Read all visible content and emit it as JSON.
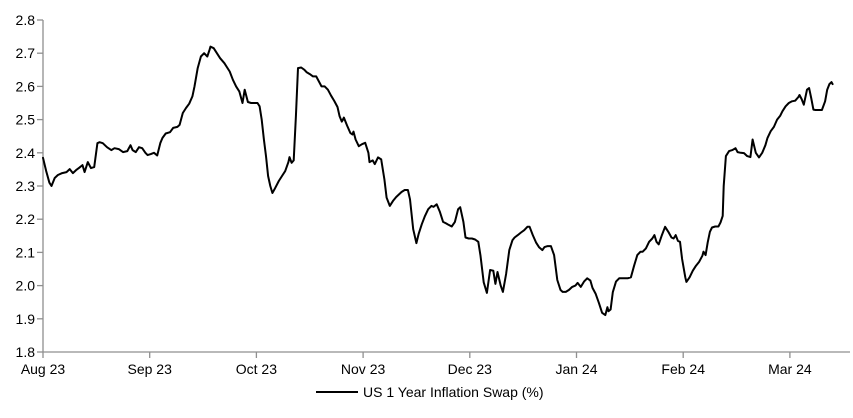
{
  "chart_data": {
    "type": "line",
    "series": [
      {
        "name": "US 1 Year Inflation Swap (%)",
        "color": "#000000",
        "points": [
          [
            0,
            2.385
          ],
          [
            0.03,
            2.345
          ],
          [
            0.06,
            2.31
          ],
          [
            0.08,
            2.3
          ],
          [
            0.11,
            2.324
          ],
          [
            0.14,
            2.333
          ],
          [
            0.18,
            2.339
          ],
          [
            0.22,
            2.342
          ],
          [
            0.25,
            2.351
          ],
          [
            0.28,
            2.339
          ],
          [
            0.31,
            2.348
          ],
          [
            0.34,
            2.355
          ],
          [
            0.37,
            2.363
          ],
          [
            0.39,
            2.342
          ],
          [
            0.42,
            2.372
          ],
          [
            0.45,
            2.354
          ],
          [
            0.48,
            2.357
          ],
          [
            0.51,
            2.429
          ],
          [
            0.53,
            2.432
          ],
          [
            0.56,
            2.429
          ],
          [
            0.6,
            2.417
          ],
          [
            0.64,
            2.408
          ],
          [
            0.67,
            2.414
          ],
          [
            0.71,
            2.411
          ],
          [
            0.75,
            2.402
          ],
          [
            0.79,
            2.405
          ],
          [
            0.82,
            2.423
          ],
          [
            0.84,
            2.408
          ],
          [
            0.87,
            2.402
          ],
          [
            0.9,
            2.417
          ],
          [
            0.93,
            2.414
          ],
          [
            0.96,
            2.4
          ],
          [
            0.98,
            2.393
          ],
          [
            1.01,
            2.396
          ],
          [
            1.04,
            2.4
          ],
          [
            1.07,
            2.392
          ],
          [
            1.1,
            2.43
          ],
          [
            1.12,
            2.445
          ],
          [
            1.15,
            2.458
          ],
          [
            1.19,
            2.462
          ],
          [
            1.22,
            2.475
          ],
          [
            1.26,
            2.478
          ],
          [
            1.28,
            2.484
          ],
          [
            1.31,
            2.52
          ],
          [
            1.34,
            2.535
          ],
          [
            1.37,
            2.548
          ],
          [
            1.4,
            2.57
          ],
          [
            1.42,
            2.6
          ],
          [
            1.45,
            2.655
          ],
          [
            1.48,
            2.69
          ],
          [
            1.51,
            2.7
          ],
          [
            1.54,
            2.69
          ],
          [
            1.56,
            2.71
          ],
          [
            1.57,
            2.72
          ],
          [
            1.6,
            2.715
          ],
          [
            1.63,
            2.7
          ],
          [
            1.66,
            2.685
          ],
          [
            1.7,
            2.67
          ],
          [
            1.72,
            2.66
          ],
          [
            1.75,
            2.645
          ],
          [
            1.78,
            2.62
          ],
          [
            1.81,
            2.6
          ],
          [
            1.84,
            2.585
          ],
          [
            1.87,
            2.55
          ],
          [
            1.89,
            2.59
          ],
          [
            1.92,
            2.553
          ],
          [
            1.95,
            2.55
          ],
          [
            1.98,
            2.55
          ],
          [
            2.01,
            2.55
          ],
          [
            2.03,
            2.54
          ],
          [
            2.05,
            2.5
          ],
          [
            2.07,
            2.44
          ],
          [
            2.09,
            2.39
          ],
          [
            2.11,
            2.33
          ],
          [
            2.13,
            2.3
          ],
          [
            2.15,
            2.279
          ],
          [
            2.17,
            2.29
          ],
          [
            2.21,
            2.315
          ],
          [
            2.24,
            2.33
          ],
          [
            2.27,
            2.345
          ],
          [
            2.3,
            2.372
          ],
          [
            2.31,
            2.387
          ],
          [
            2.33,
            2.37
          ],
          [
            2.35,
            2.377
          ],
          [
            2.37,
            2.51
          ],
          [
            2.39,
            2.655
          ],
          [
            2.42,
            2.657
          ],
          [
            2.45,
            2.65
          ],
          [
            2.47,
            2.643
          ],
          [
            2.5,
            2.637
          ],
          [
            2.53,
            2.63
          ],
          [
            2.56,
            2.63
          ],
          [
            2.59,
            2.612
          ],
          [
            2.61,
            2.6
          ],
          [
            2.64,
            2.6
          ],
          [
            2.67,
            2.59
          ],
          [
            2.7,
            2.572
          ],
          [
            2.73,
            2.556
          ],
          [
            2.76,
            2.538
          ],
          [
            2.78,
            2.51
          ],
          [
            2.8,
            2.494
          ],
          [
            2.82,
            2.506
          ],
          [
            2.85,
            2.482
          ],
          [
            2.88,
            2.46
          ],
          [
            2.9,
            2.455
          ],
          [
            2.91,
            2.464
          ],
          [
            2.93,
            2.44
          ],
          [
            2.96,
            2.42
          ],
          [
            2.99,
            2.426
          ],
          [
            3.02,
            2.43
          ],
          [
            3.05,
            2.4
          ],
          [
            3.06,
            2.372
          ],
          [
            3.09,
            2.377
          ],
          [
            3.11,
            2.366
          ],
          [
            3.14,
            2.386
          ],
          [
            3.17,
            2.38
          ],
          [
            3.2,
            2.32
          ],
          [
            3.22,
            2.265
          ],
          [
            3.25,
            2.24
          ],
          [
            3.28,
            2.255
          ],
          [
            3.31,
            2.267
          ],
          [
            3.34,
            2.276
          ],
          [
            3.36,
            2.282
          ],
          [
            3.39,
            2.288
          ],
          [
            3.42,
            2.288
          ],
          [
            3.44,
            2.26
          ],
          [
            3.47,
            2.17
          ],
          [
            3.5,
            2.128
          ],
          [
            3.52,
            2.155
          ],
          [
            3.55,
            2.185
          ],
          [
            3.58,
            2.21
          ],
          [
            3.61,
            2.23
          ],
          [
            3.64,
            2.24
          ],
          [
            3.66,
            2.237
          ],
          [
            3.69,
            2.245
          ],
          [
            3.72,
            2.222
          ],
          [
            3.75,
            2.192
          ],
          [
            3.78,
            2.187
          ],
          [
            3.8,
            2.183
          ],
          [
            3.83,
            2.178
          ],
          [
            3.86,
            2.192
          ],
          [
            3.89,
            2.23
          ],
          [
            3.91,
            2.236
          ],
          [
            3.94,
            2.192
          ],
          [
            3.96,
            2.145
          ],
          [
            3.99,
            2.142
          ],
          [
            4.02,
            2.142
          ],
          [
            4.05,
            2.139
          ],
          [
            4.08,
            2.132
          ],
          [
            4.1,
            2.09
          ],
          [
            4.13,
            2.01
          ],
          [
            4.16,
            1.978
          ],
          [
            4.19,
            2.047
          ],
          [
            4.22,
            2.045
          ],
          [
            4.24,
            2.005
          ],
          [
            4.26,
            2.041
          ],
          [
            4.29,
            2.0
          ],
          [
            4.31,
            1.981
          ],
          [
            4.34,
            2.035
          ],
          [
            4.37,
            2.107
          ],
          [
            4.4,
            2.137
          ],
          [
            4.42,
            2.145
          ],
          [
            4.45,
            2.152
          ],
          [
            4.48,
            2.16
          ],
          [
            4.51,
            2.167
          ],
          [
            4.54,
            2.177
          ],
          [
            4.56,
            2.177
          ],
          [
            4.59,
            2.152
          ],
          [
            4.62,
            2.13
          ],
          [
            4.65,
            2.115
          ],
          [
            4.68,
            2.107
          ],
          [
            4.7,
            2.116
          ],
          [
            4.73,
            2.119
          ],
          [
            4.76,
            2.119
          ],
          [
            4.79,
            2.092
          ],
          [
            4.82,
            2.017
          ],
          [
            4.85,
            1.987
          ],
          [
            4.87,
            1.981
          ],
          [
            4.9,
            1.981
          ],
          [
            4.93,
            1.987
          ],
          [
            4.96,
            1.996
          ],
          [
            4.99,
            2.0
          ],
          [
            5.01,
            2.008
          ],
          [
            5.04,
            1.996
          ],
          [
            5.07,
            2.012
          ],
          [
            5.1,
            2.022
          ],
          [
            5.13,
            2.015
          ],
          [
            5.15,
            1.993
          ],
          [
            5.18,
            1.975
          ],
          [
            5.21,
            1.948
          ],
          [
            5.24,
            1.918
          ],
          [
            5.27,
            1.911
          ],
          [
            5.29,
            1.935
          ],
          [
            5.3,
            1.923
          ],
          [
            5.32,
            1.928
          ],
          [
            5.34,
            1.98
          ],
          [
            5.37,
            2.012
          ],
          [
            5.4,
            2.022
          ],
          [
            5.43,
            2.022
          ],
          [
            5.45,
            2.022
          ],
          [
            5.48,
            2.022
          ],
          [
            5.51,
            2.025
          ],
          [
            5.54,
            2.06
          ],
          [
            5.57,
            2.092
          ],
          [
            5.6,
            2.102
          ],
          [
            5.62,
            2.102
          ],
          [
            5.65,
            2.112
          ],
          [
            5.68,
            2.132
          ],
          [
            5.71,
            2.142
          ],
          [
            5.73,
            2.152
          ],
          [
            5.75,
            2.132
          ],
          [
            5.77,
            2.124
          ],
          [
            5.8,
            2.152
          ],
          [
            5.83,
            2.177
          ],
          [
            5.86,
            2.162
          ],
          [
            5.89,
            2.145
          ],
          [
            5.91,
            2.142
          ],
          [
            5.93,
            2.152
          ],
          [
            5.95,
            2.135
          ],
          [
            5.97,
            2.132
          ],
          [
            5.99,
            2.08
          ],
          [
            6.02,
            2.025
          ],
          [
            6.03,
            2.011
          ],
          [
            6.06,
            2.025
          ],
          [
            6.09,
            2.045
          ],
          [
            6.12,
            2.06
          ],
          [
            6.15,
            2.072
          ],
          [
            6.18,
            2.09
          ],
          [
            6.19,
            2.102
          ],
          [
            6.21,
            2.092
          ],
          [
            6.23,
            2.13
          ],
          [
            6.25,
            2.162
          ],
          [
            6.27,
            2.175
          ],
          [
            6.3,
            2.178
          ],
          [
            6.33,
            2.178
          ],
          [
            6.35,
            2.19
          ],
          [
            6.37,
            2.21
          ],
          [
            6.38,
            2.3
          ],
          [
            6.4,
            2.39
          ],
          [
            6.43,
            2.405
          ],
          [
            6.46,
            2.408
          ],
          [
            6.49,
            2.414
          ],
          [
            6.51,
            2.402
          ],
          [
            6.54,
            2.4
          ],
          [
            6.57,
            2.399
          ],
          [
            6.6,
            2.39
          ],
          [
            6.63,
            2.387
          ],
          [
            6.65,
            2.44
          ],
          [
            6.68,
            2.4
          ],
          [
            6.71,
            2.386
          ],
          [
            6.74,
            2.4
          ],
          [
            6.77,
            2.423
          ],
          [
            6.79,
            2.445
          ],
          [
            6.82,
            2.465
          ],
          [
            6.85,
            2.478
          ],
          [
            6.88,
            2.5
          ],
          [
            6.91,
            2.512
          ],
          [
            6.93,
            2.525
          ],
          [
            6.96,
            2.54
          ],
          [
            6.99,
            2.55
          ],
          [
            7.02,
            2.555
          ],
          [
            7.05,
            2.557
          ],
          [
            7.08,
            2.568
          ],
          [
            7.09,
            2.574
          ],
          [
            7.11,
            2.562
          ],
          [
            7.13,
            2.545
          ],
          [
            7.16,
            2.59
          ],
          [
            7.18,
            2.595
          ],
          [
            7.2,
            2.565
          ],
          [
            7.22,
            2.53
          ],
          [
            7.24,
            2.529
          ],
          [
            7.27,
            2.529
          ],
          [
            7.3,
            2.529
          ],
          [
            7.33,
            2.555
          ],
          [
            7.35,
            2.59
          ],
          [
            7.37,
            2.607
          ],
          [
            7.39,
            2.613
          ],
          [
            7.4,
            2.607
          ]
        ]
      }
    ],
    "x_unit": "months since Aug 2023 tick",
    "x_tick_positions": [
      0,
      1,
      2,
      3,
      4,
      5,
      6,
      7
    ],
    "x_tick_labels": [
      "Aug 23",
      "Sep 23",
      "Oct 23",
      "Nov 23",
      "Dec 23",
      "Jan 24",
      "Feb 24",
      "Mar 24"
    ],
    "xlim": [
      0,
      7.56
    ],
    "y_ticks": [
      1.8,
      1.9,
      2.0,
      2.1,
      2.2,
      2.3,
      2.4,
      2.5,
      2.6,
      2.7,
      2.8
    ],
    "y_tick_decimals": 1,
    "ylim": [
      1.8,
      2.8
    ],
    "grid": false,
    "legend_position": "bottom-center",
    "colors": {
      "line": "#000000",
      "axis": "#8f8f8f",
      "tick_text": "#000000",
      "background": "#ffffff"
    }
  }
}
